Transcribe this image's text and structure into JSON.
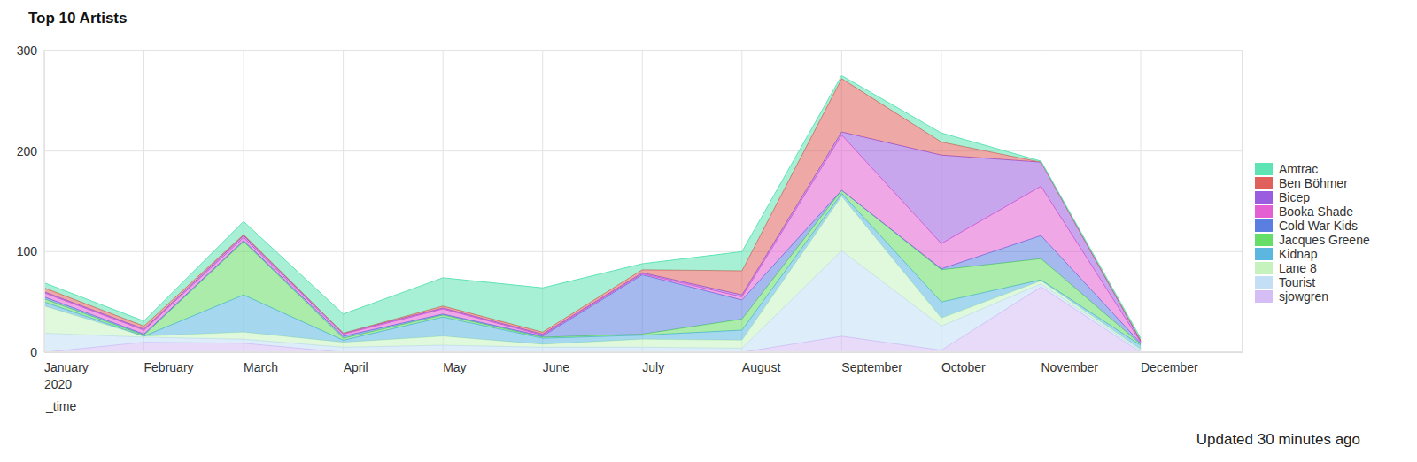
{
  "chart_data": {
    "type": "area",
    "title": "Top 10 Artists",
    "x_label": "_time",
    "annotation": "Updated 30 minutes ago",
    "categories": [
      "January 2020",
      "February",
      "March",
      "April",
      "May",
      "June",
      "July",
      "August",
      "September",
      "October",
      "November",
      "December"
    ],
    "series": [
      {
        "name": "Amtrac",
        "color": "#5ee3b5",
        "values": [
          5,
          5,
          13,
          19,
          28,
          44,
          6,
          19,
          3,
          9,
          1,
          2
        ]
      },
      {
        "name": "Ben Böhmer",
        "color": "#e0605b",
        "values": [
          4,
          3,
          1,
          0,
          2,
          2,
          3,
          24,
          53,
          13,
          0,
          1
        ]
      },
      {
        "name": "Bicep",
        "color": "#9b5de0",
        "values": [
          1,
          1,
          2,
          1,
          1,
          1,
          1,
          2,
          3,
          88,
          24,
          1
        ]
      },
      {
        "name": "Booka Shade",
        "color": "#e45fd2",
        "values": [
          4,
          4,
          3,
          2,
          5,
          1,
          1,
          3,
          55,
          25,
          49,
          1
        ]
      },
      {
        "name": "Cold War Kids",
        "color": "#5b7fe0",
        "values": [
          2,
          1,
          1,
          2,
          1,
          1,
          59,
          19,
          0,
          1,
          23,
          1
        ]
      },
      {
        "name": "Jacques Greene",
        "color": "#66dd66",
        "values": [
          3,
          1,
          53,
          2,
          2,
          1,
          1,
          11,
          3,
          32,
          21,
          1
        ]
      },
      {
        "name": "Kidnap",
        "color": "#5bb7e0",
        "values": [
          4,
          0,
          37,
          2,
          19,
          6,
          4,
          10,
          3,
          16,
          1,
          4
        ]
      },
      {
        "name": "Lane 8",
        "color": "#c6f2bd",
        "values": [
          27,
          1,
          7,
          5,
          9,
          3,
          8,
          8,
          54,
          8,
          3,
          1
        ]
      },
      {
        "name": "Tourist",
        "color": "#c3dff5",
        "values": [
          19,
          5,
          4,
          5,
          7,
          5,
          5,
          4,
          85,
          24,
          3,
          2
        ]
      },
      {
        "name": "sjowgren",
        "color": "#d5bdf5",
        "values": [
          0,
          10,
          9,
          0,
          0,
          0,
          0,
          0,
          16,
          2,
          65,
          0
        ]
      }
    ],
    "ylim": [
      0,
      300
    ],
    "yticks": [
      0,
      100,
      200,
      300
    ],
    "grid": true,
    "stacked": true,
    "legend": "right"
  }
}
